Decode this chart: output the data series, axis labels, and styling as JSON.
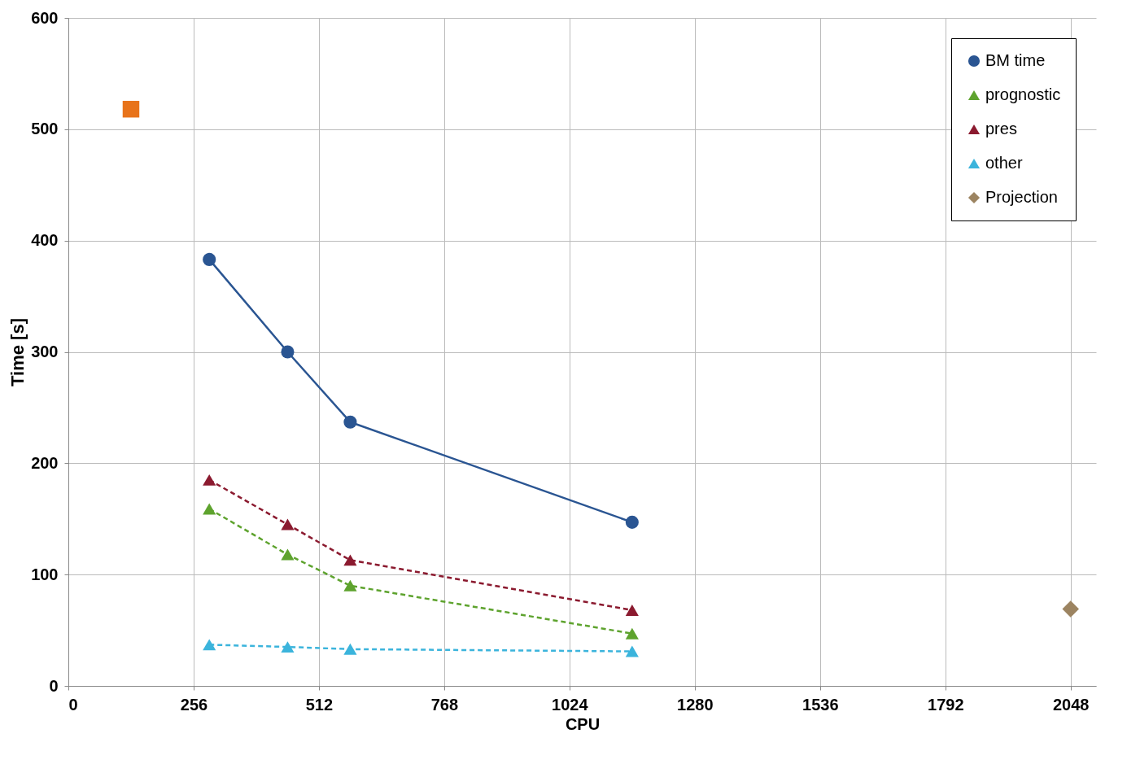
{
  "chart_data": {
    "type": "line",
    "xlabel": "CPU",
    "ylabel": "Time [s]",
    "xlim": [
      0,
      2100
    ],
    "xticks": [
      0,
      256,
      512,
      768,
      1024,
      1280,
      1536,
      1792,
      2048
    ],
    "ylim": [
      0,
      600
    ],
    "yticks": [
      0,
      100,
      200,
      300,
      400,
      500,
      600
    ],
    "grid": true,
    "legend": "top right",
    "series": [
      {
        "name": "BM time",
        "color": "#2a5592",
        "marker": "circle",
        "line_style": "solid",
        "x": [
          288,
          448,
          576,
          1152
        ],
        "values": [
          383,
          300,
          237,
          147
        ]
      },
      {
        "name": "prognostic",
        "color": "#5ea32e",
        "marker": "triangle",
        "line_style": "dashed",
        "x": [
          288,
          448,
          576,
          1152
        ],
        "values": [
          159,
          118,
          90,
          47
        ]
      },
      {
        "name": "pres",
        "color": "#8b1a2f",
        "marker": "triangle",
        "line_style": "dashed",
        "x": [
          288,
          448,
          576,
          1152
        ],
        "values": [
          185,
          145,
          113,
          68
        ]
      },
      {
        "name": "other",
        "color": "#3bb4dc",
        "marker": "triangle",
        "line_style": "dashed",
        "x": [
          288,
          448,
          576,
          1152
        ],
        "values": [
          37,
          35,
          33,
          31
        ]
      },
      {
        "name": "Projection",
        "type": "scatter",
        "color": "#9c8461",
        "marker": "diamond",
        "x": [
          2048
        ],
        "values": [
          69
        ]
      },
      {
        "type": "scatter",
        "color": "#e8731a",
        "marker": "square",
        "x": [
          128
        ],
        "values": [
          518
        ]
      }
    ]
  }
}
